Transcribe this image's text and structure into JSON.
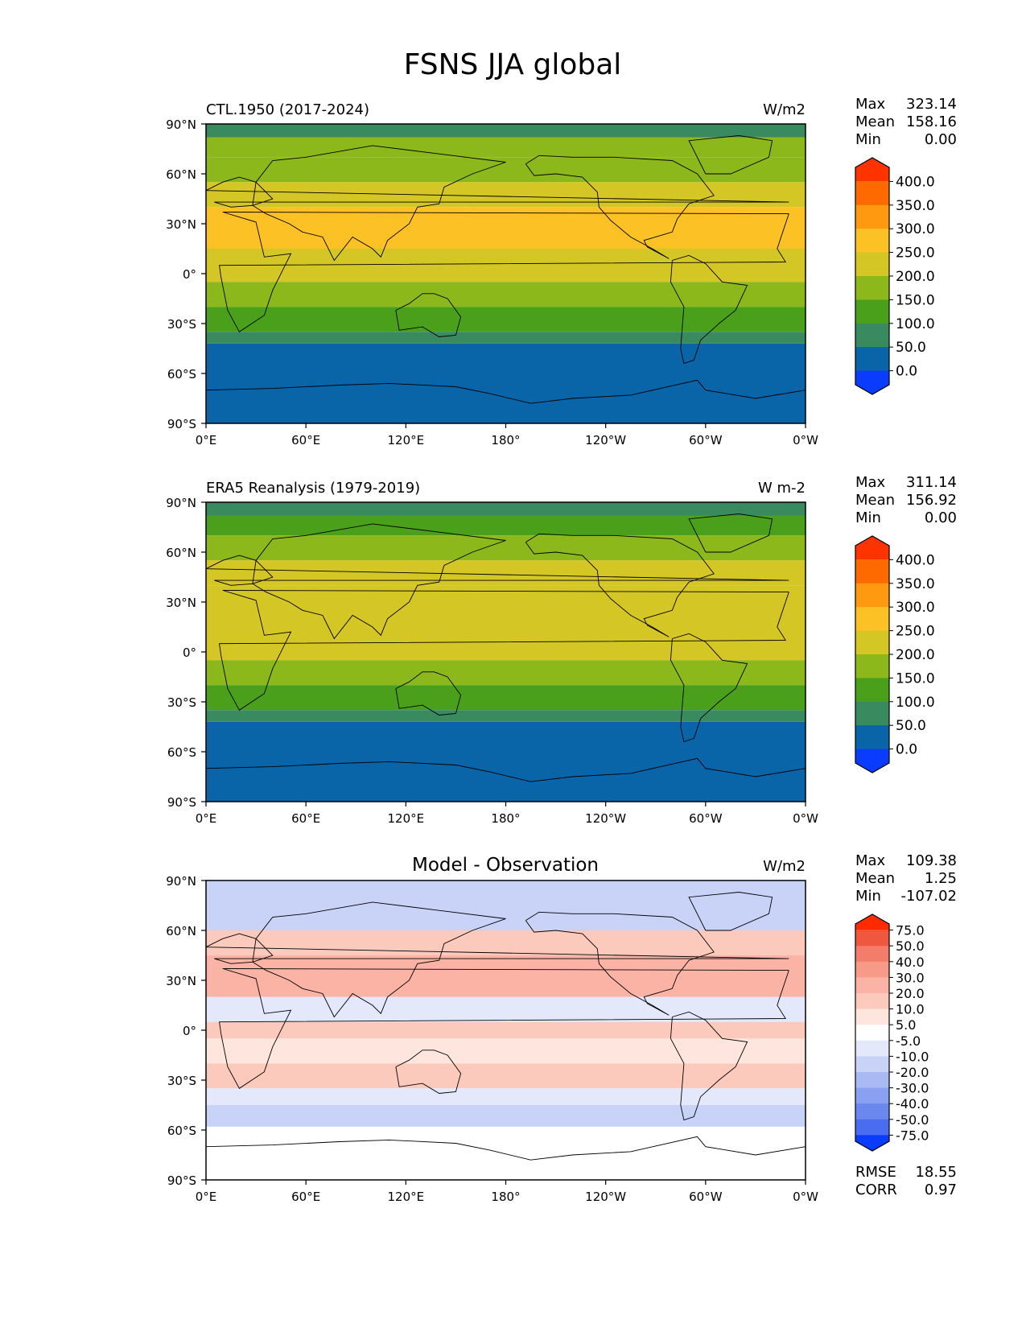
{
  "figure_title": "FSNS JJA global",
  "lon_ticks": [
    "0°E",
    "60°E",
    "120°E",
    "180°",
    "120°W",
    "60°W",
    "0°W"
  ],
  "lat_ticks": [
    "90°N",
    "60°N",
    "30°N",
    "0°",
    "30°S",
    "60°S",
    "90°S"
  ],
  "panels": [
    {
      "left_title": "CTL.1950 (2017-2024)",
      "center_title": "",
      "units": "W/m2",
      "stats": [
        {
          "label": "Max",
          "value": "323.14"
        },
        {
          "label": "Mean",
          "value": "158.16"
        },
        {
          "label": "Min",
          "value": "0.00"
        }
      ],
      "colorbar": {
        "labels": [
          "400.0",
          "350.0",
          "300.0",
          "250.0",
          "200.0",
          "150.0",
          "100.0",
          "50.0",
          "0.0"
        ],
        "colors": [
          "#ff3300",
          "#ff6a00",
          "#ff9a10",
          "#fcc125",
          "#d4c624",
          "#8cb81c",
          "#4aa01a",
          "#3a8a60",
          "#0a64a8",
          "#0a3cff"
        ]
      }
    },
    {
      "left_title": "ERA5 Reanalysis (1979-2019)",
      "center_title": "",
      "units": "W m-2",
      "stats": [
        {
          "label": "Max",
          "value": "311.14"
        },
        {
          "label": "Mean",
          "value": "156.92"
        },
        {
          "label": "Min",
          "value": "0.00"
        }
      ],
      "colorbar": {
        "labels": [
          "400.0",
          "350.0",
          "300.0",
          "250.0",
          "200.0",
          "150.0",
          "100.0",
          "50.0",
          "0.0"
        ],
        "colors": [
          "#ff3300",
          "#ff6a00",
          "#ff9a10",
          "#fcc125",
          "#d4c624",
          "#8cb81c",
          "#4aa01a",
          "#3a8a60",
          "#0a64a8",
          "#0a3cff"
        ]
      }
    },
    {
      "left_title": "",
      "center_title": "Model - Observation",
      "units": "W/m2",
      "stats": [
        {
          "label": "Max",
          "value": "109.38"
        },
        {
          "label": "Mean",
          "value": "1.25"
        },
        {
          "label": "Min",
          "value": "-107.02"
        }
      ],
      "colorbar": {
        "labels": [
          "75.0",
          "50.0",
          "40.0",
          "30.0",
          "20.0",
          "10.0",
          "5.0",
          "-5.0",
          "-10.0",
          "-20.0",
          "-30.0",
          "-40.0",
          "-50.0",
          "-75.0"
        ],
        "colors": [
          "#ff2a00",
          "#f0573f",
          "#f47c6a",
          "#f89a88",
          "#fab3a4",
          "#fccabd",
          "#fee6de",
          "#ffffff",
          "#e3e8fb",
          "#c9d3f8",
          "#a9b9f4",
          "#8aa0f0",
          "#6b88ee",
          "#4a6cf0",
          "#0a3cff"
        ]
      },
      "extra_stats": [
        {
          "label": "RMSE",
          "value": "18.55"
        },
        {
          "label": "CORR",
          "value": "0.97"
        }
      ]
    }
  ],
  "chart_data": [
    {
      "type": "heatmap",
      "title": "CTL.1950 (2017-2024)",
      "units": "W/m2",
      "xlim": [
        0,
        360
      ],
      "ylim": [
        -90,
        90
      ],
      "levels": [
        0,
        50,
        100,
        150,
        200,
        250,
        300,
        350,
        400
      ],
      "zonal_bands": [
        {
          "lat": [
            82,
            90
          ],
          "value": 90
        },
        {
          "lat": [
            70,
            82
          ],
          "value": 150
        },
        {
          "lat": [
            55,
            70
          ],
          "value": 185
        },
        {
          "lat": [
            40,
            55
          ],
          "value": 220
        },
        {
          "lat": [
            15,
            40
          ],
          "value": 255
        },
        {
          "lat": [
            -5,
            15
          ],
          "value": 215
        },
        {
          "lat": [
            -20,
            -5
          ],
          "value": 175
        },
        {
          "lat": [
            -35,
            -20
          ],
          "value": 135
        },
        {
          "lat": [
            -42,
            -35
          ],
          "value": 80
        },
        {
          "lat": [
            -82,
            -42
          ],
          "value": 30
        },
        {
          "lat": [
            -90,
            -82
          ],
          "value": 0
        }
      ],
      "stats": {
        "max": 323.14,
        "mean": 158.16,
        "min": 0.0
      }
    },
    {
      "type": "heatmap",
      "title": "ERA5 Reanalysis (1979-2019)",
      "units": "W m-2",
      "xlim": [
        0,
        360
      ],
      "ylim": [
        -90,
        90
      ],
      "levels": [
        0,
        50,
        100,
        150,
        200,
        250,
        300,
        350,
        400
      ],
      "zonal_bands": [
        {
          "lat": [
            82,
            90
          ],
          "value": 90
        },
        {
          "lat": [
            70,
            82
          ],
          "value": 145
        },
        {
          "lat": [
            55,
            70
          ],
          "value": 185
        },
        {
          "lat": [
            40,
            55
          ],
          "value": 215
        },
        {
          "lat": [
            15,
            40
          ],
          "value": 240
        },
        {
          "lat": [
            -5,
            15
          ],
          "value": 210
        },
        {
          "lat": [
            -20,
            -5
          ],
          "value": 175
        },
        {
          "lat": [
            -35,
            -20
          ],
          "value": 135
        },
        {
          "lat": [
            -42,
            -35
          ],
          "value": 80
        },
        {
          "lat": [
            -82,
            -42
          ],
          "value": 30
        },
        {
          "lat": [
            -90,
            -82
          ],
          "value": 0
        }
      ],
      "stats": {
        "max": 311.14,
        "mean": 156.92,
        "min": 0.0
      }
    },
    {
      "type": "heatmap",
      "title": "Model - Observation",
      "units": "W/m2",
      "xlim": [
        0,
        360
      ],
      "ylim": [
        -90,
        90
      ],
      "levels": [
        -75,
        -50,
        -40,
        -30,
        -20,
        -10,
        -5,
        5,
        10,
        20,
        30,
        40,
        50,
        75
      ],
      "zonal_bands": [
        {
          "lat": [
            75,
            90
          ],
          "value": -12
        },
        {
          "lat": [
            60,
            75
          ],
          "value": -20
        },
        {
          "lat": [
            45,
            60
          ],
          "value": 15
        },
        {
          "lat": [
            20,
            45
          ],
          "value": 25
        },
        {
          "lat": [
            5,
            20
          ],
          "value": -8
        },
        {
          "lat": [
            -5,
            5
          ],
          "value": 12
        },
        {
          "lat": [
            -20,
            -5
          ],
          "value": 8
        },
        {
          "lat": [
            -35,
            -20
          ],
          "value": 18
        },
        {
          "lat": [
            -45,
            -35
          ],
          "value": -8
        },
        {
          "lat": [
            -58,
            -45
          ],
          "value": -15
        },
        {
          "lat": [
            -90,
            -58
          ],
          "value": 0
        }
      ],
      "stats": {
        "max": 109.38,
        "mean": 1.25,
        "min": -107.02,
        "rmse": 18.55,
        "corr": 0.97
      }
    }
  ]
}
